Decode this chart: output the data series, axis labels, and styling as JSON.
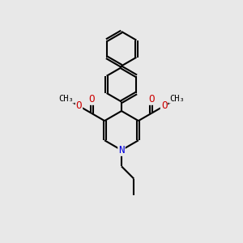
{
  "bg_color": "#e8e8e8",
  "line_color": "#000000",
  "n_color": "#0000dd",
  "o_color": "#cc0000",
  "bond_width": 1.5,
  "figsize": [
    3.0,
    3.0
  ],
  "dpi": 100,
  "xlim": [
    0,
    10
  ],
  "ylim": [
    0,
    10
  ]
}
